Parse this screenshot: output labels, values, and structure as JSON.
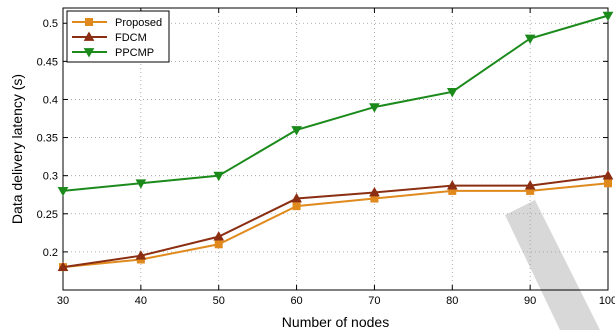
{
  "chart_data": {
    "type": "line",
    "title": "",
    "xlabel": "Number of nodes",
    "ylabel": "Data delivery latency (s)",
    "x": [
      30,
      40,
      50,
      60,
      70,
      80,
      90,
      100
    ],
    "xlim": [
      30,
      100
    ],
    "ylim": [
      0.15,
      0.52
    ],
    "xticks": [
      "30",
      "40",
      "50",
      "60",
      "70",
      "80",
      "90",
      "100"
    ],
    "yticks": [
      "0.2",
      "0.25",
      "0.3",
      "0.35",
      "0.4",
      "0.45",
      "0.5"
    ],
    "grid": true,
    "legend_position": "top-left",
    "series": [
      {
        "name": "Proposed",
        "color": "#e08a1e",
        "marker": "square",
        "values": [
          0.18,
          0.19,
          0.21,
          0.26,
          0.27,
          0.28,
          0.28,
          0.29
        ]
      },
      {
        "name": "FDCM",
        "color": "#8b2e12",
        "marker": "triangle-up",
        "values": [
          0.18,
          0.195,
          0.22,
          0.27,
          0.278,
          0.287,
          0.287,
          0.3
        ]
      },
      {
        "name": "PPCMP",
        "color": "#1b8a1b",
        "marker": "triangle-down",
        "values": [
          0.28,
          0.29,
          0.3,
          0.36,
          0.39,
          0.41,
          0.48,
          0.51
        ]
      }
    ]
  }
}
